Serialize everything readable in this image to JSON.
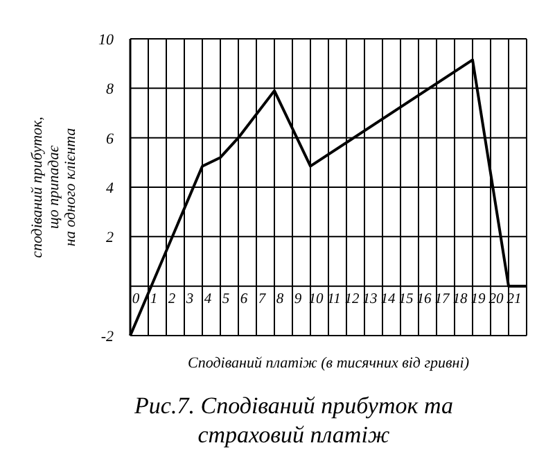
{
  "chart_data": {
    "type": "line",
    "title": "Рис.7. Сподіваний прибуток та страховий платіж",
    "xlabel": "Сподіваний платіж (в тисячних від гривні)",
    "ylabel": "сподіваний прибуток, що припадає на одного клієнта",
    "x": [
      0,
      4,
      5,
      6,
      8,
      10,
      19,
      21,
      22
    ],
    "series": [
      {
        "color": "#000000",
        "values": [
          -2,
          4.85,
          5.2,
          6,
          7.9,
          4.85,
          9.15,
          0,
          0
        ]
      }
    ],
    "xlim": [
      0,
      22
    ],
    "xticks": [
      0,
      1,
      2,
      3,
      4,
      5,
      6,
      7,
      8,
      9,
      10,
      11,
      12,
      13,
      14,
      15,
      16,
      17,
      18,
      19,
      20,
      21
    ],
    "ylim": [
      -2,
      10
    ],
    "yticks": [
      -2,
      {
        "value": 0,
        "label": null
      },
      2,
      4,
      6,
      8,
      10
    ],
    "grid": true,
    "marker": "none",
    "line_style": "solid"
  }
}
